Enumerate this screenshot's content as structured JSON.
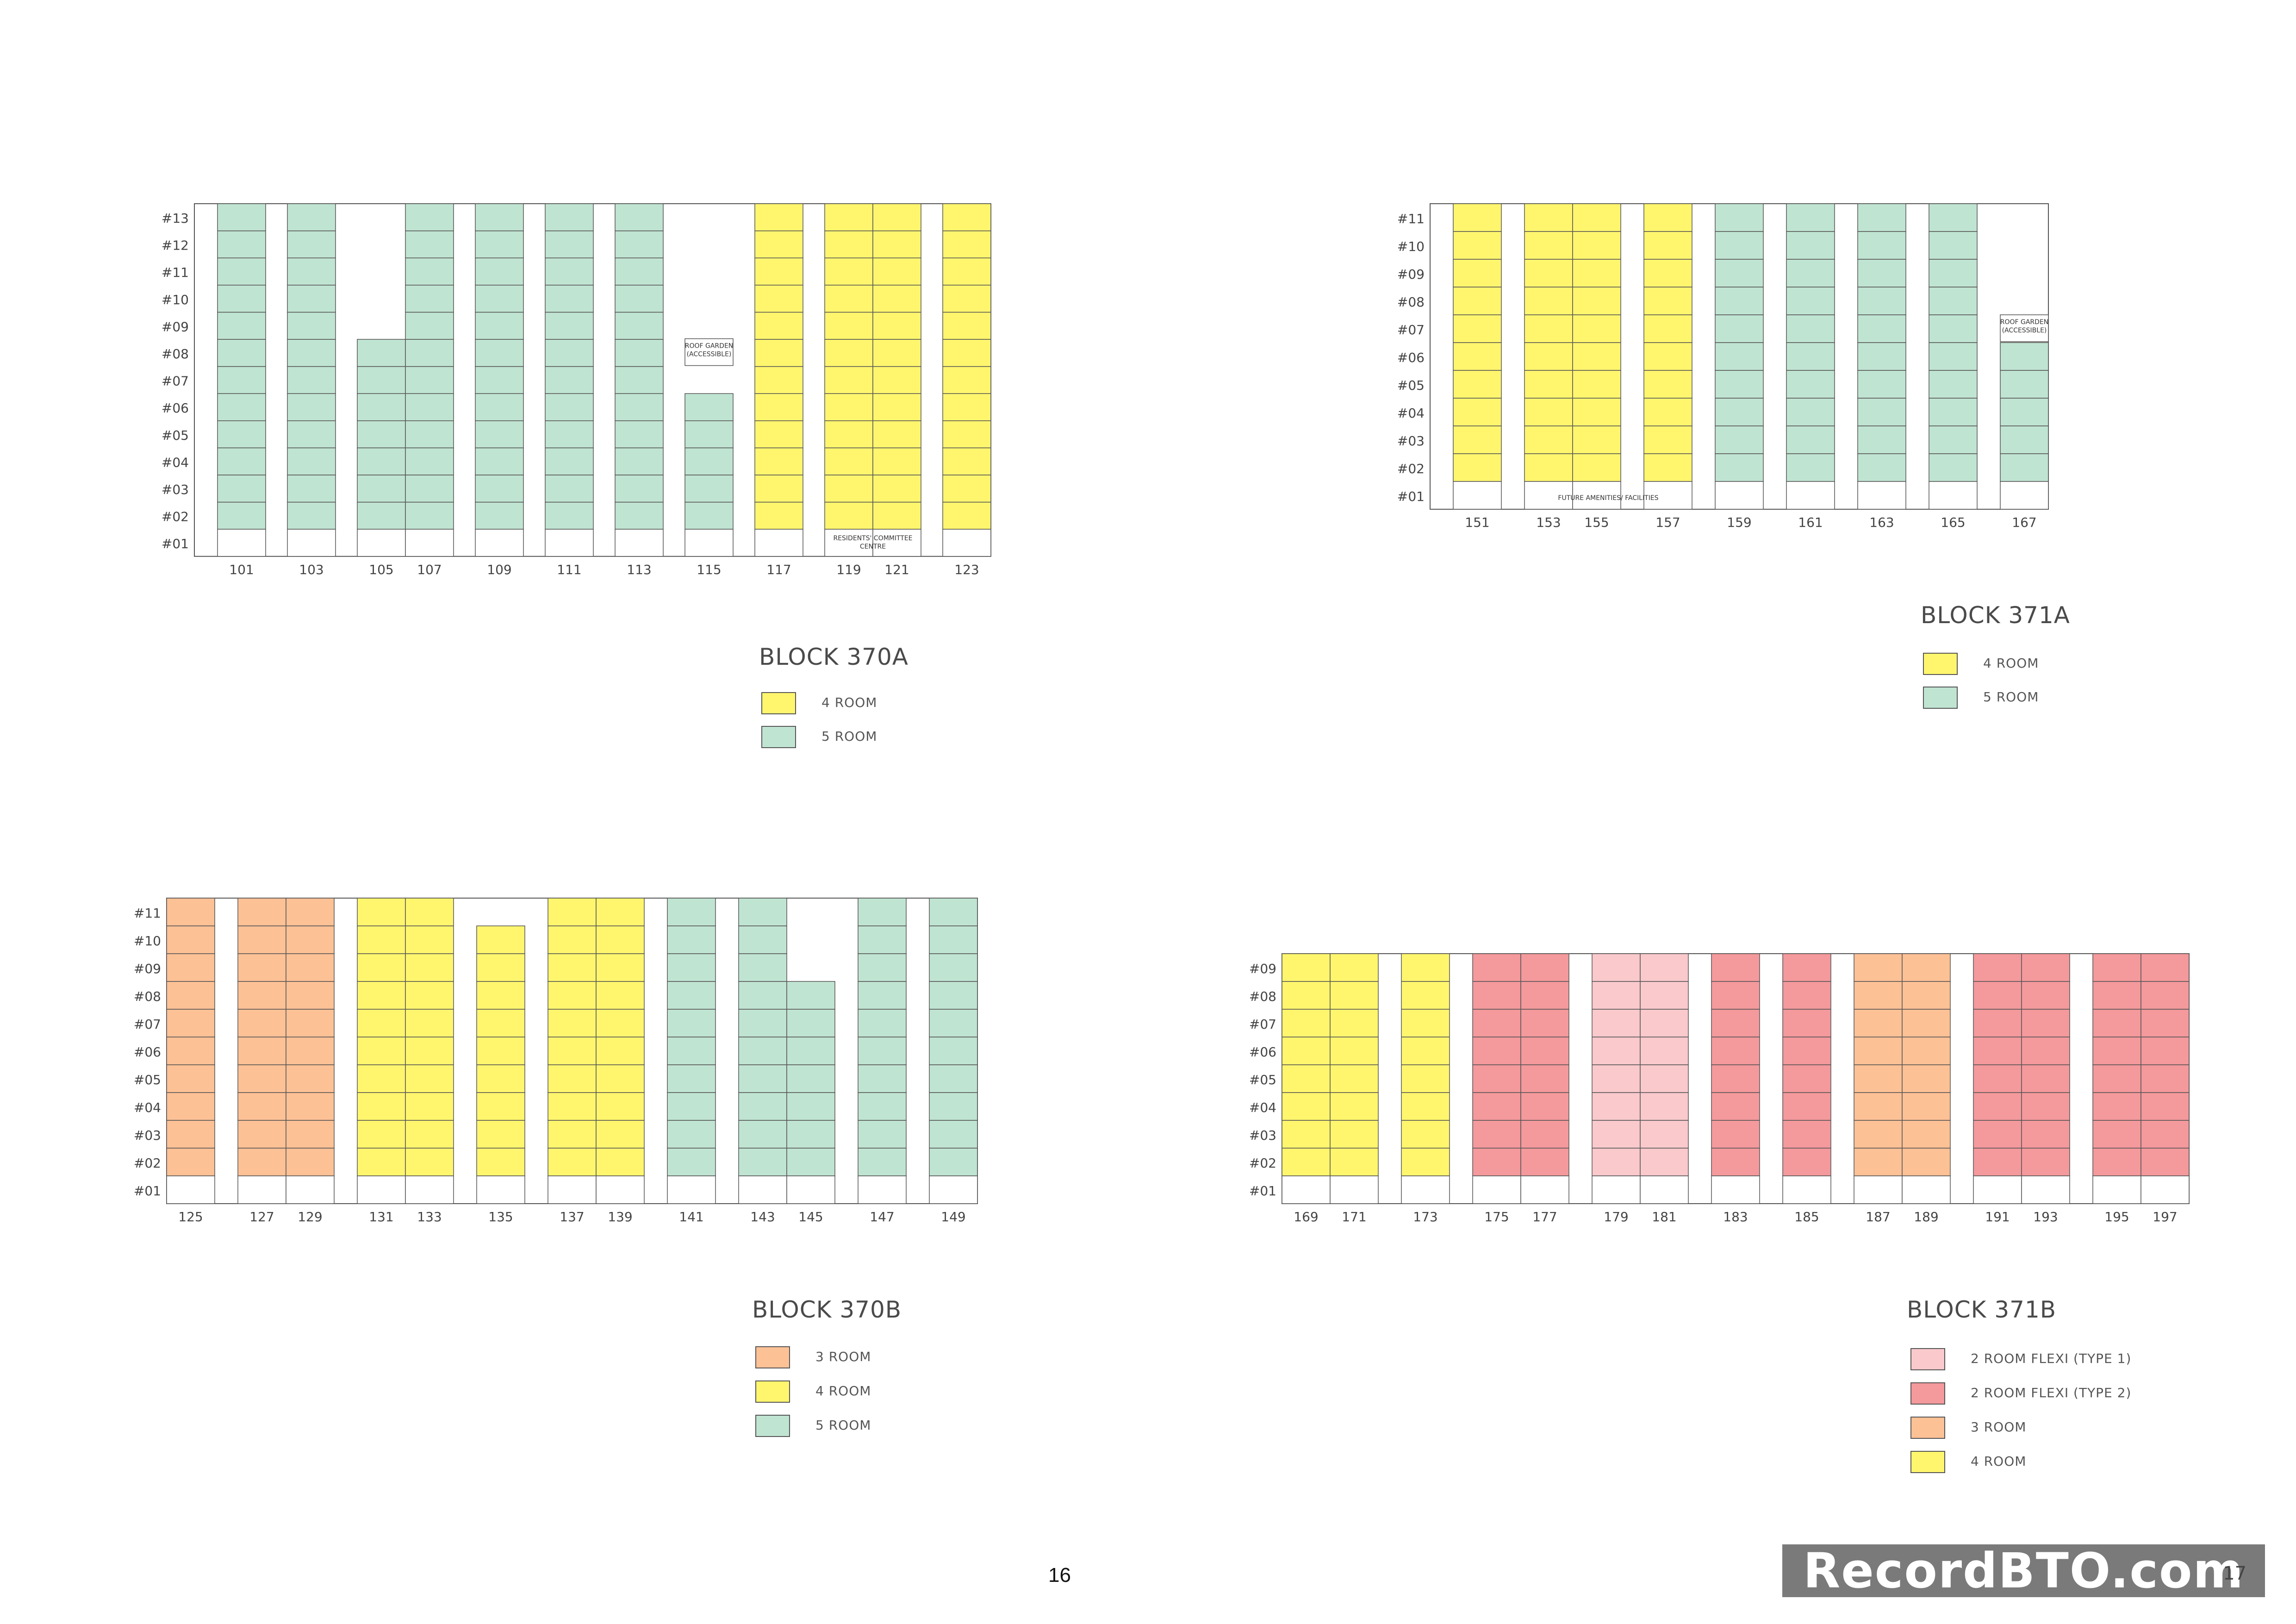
{
  "colors": {
    "two_room_flexi_type1": "#f9c9cc",
    "two_room_flexi_type2": "#f4999c",
    "three_room": "#fdc196",
    "four_room": "#fff66e",
    "five_room": "#c0e4d2",
    "empty": "#ffffff",
    "line": "#555555"
  },
  "page": {
    "page_number": "16",
    "watermark": "RecordBTO.com",
    "watermark_trailing_digit": "17"
  },
  "blocks": [
    {
      "id": "370A",
      "title": "BLOCK  370A",
      "floor_labels": [
        "#13",
        "#12",
        "#11",
        "#10",
        "#09",
        "#08",
        "#07",
        "#06",
        "#05",
        "#04",
        "#03",
        "#02",
        "#01"
      ],
      "stacks": [
        {
          "label": "101",
          "type": "five_room",
          "top_floor": 13
        },
        {
          "label": "103",
          "type": "five_room",
          "top_floor": 13
        },
        {
          "label": "105",
          "type": "five_room",
          "top_floor": 8
        },
        {
          "label": "107",
          "type": "five_room",
          "top_floor": 13
        },
        {
          "label": "109",
          "type": "five_room",
          "top_floor": 13
        },
        {
          "label": "111",
          "type": "five_room",
          "top_floor": 13
        },
        {
          "label": "113",
          "type": "five_room",
          "top_floor": 13
        },
        {
          "label": "115",
          "type": "five_room",
          "top_floor": 6
        },
        {
          "label": "117",
          "type": "four_room",
          "top_floor": 13
        },
        {
          "label": "119",
          "type": "four_room",
          "top_floor": 13
        },
        {
          "label": "121",
          "type": "four_room",
          "top_floor": 13
        },
        {
          "label": "123",
          "type": "four_room",
          "top_floor": 13
        }
      ],
      "notes": [
        "ROOF GARDEN",
        "(ACCESSIBLE)",
        "RESIDENTS' COMMITTEE",
        "CENTRE"
      ],
      "legend": [
        {
          "type": "four_room",
          "label": "4  ROOM"
        },
        {
          "type": "five_room",
          "label": "5  ROOM"
        }
      ]
    },
    {
      "id": "371A",
      "title": "BLOCK  371A",
      "floor_labels": [
        "#11",
        "#10",
        "#09",
        "#08",
        "#07",
        "#06",
        "#05",
        "#04",
        "#03",
        "#02",
        "#01"
      ],
      "stacks": [
        {
          "label": "151",
          "type": "four_room",
          "top_floor": 11
        },
        {
          "label": "153",
          "type": "four_room",
          "top_floor": 11
        },
        {
          "label": "155",
          "type": "four_room",
          "top_floor": 11
        },
        {
          "label": "157",
          "type": "four_room",
          "top_floor": 11
        },
        {
          "label": "159",
          "type": "five_room",
          "top_floor": 11
        },
        {
          "label": "161",
          "type": "five_room",
          "top_floor": 11
        },
        {
          "label": "163",
          "type": "five_room",
          "top_floor": 11
        },
        {
          "label": "165",
          "type": "five_room",
          "top_floor": 11
        },
        {
          "label": "167",
          "type": "five_room",
          "top_floor": 6
        }
      ],
      "notes": [
        "FUTURE AMENITIES/ FACILITIES",
        "ROOF GARDEN",
        "(ACCESSIBLE)"
      ],
      "legend": [
        {
          "type": "four_room",
          "label": "4  ROOM"
        },
        {
          "type": "five_room",
          "label": "5  ROOM"
        }
      ]
    },
    {
      "id": "370B",
      "title": "BLOCK  370B",
      "floor_labels": [
        "#11",
        "#10",
        "#09",
        "#08",
        "#07",
        "#06",
        "#05",
        "#04",
        "#03",
        "#02",
        "#01"
      ],
      "stacks": [
        {
          "label": "125",
          "type": "three_room",
          "top_floor": 11
        },
        {
          "label": "127",
          "type": "three_room",
          "top_floor": 11
        },
        {
          "label": "129",
          "type": "three_room",
          "top_floor": 11
        },
        {
          "label": "131",
          "type": "four_room",
          "top_floor": 11
        },
        {
          "label": "133",
          "type": "four_room",
          "top_floor": 11
        },
        {
          "label": "135",
          "type": "four_room",
          "top_floor": 10
        },
        {
          "label": "137",
          "type": "four_room",
          "top_floor": 11
        },
        {
          "label": "139",
          "type": "four_room",
          "top_floor": 11
        },
        {
          "label": "141",
          "type": "five_room",
          "top_floor": 11
        },
        {
          "label": "143",
          "type": "five_room",
          "top_floor": 11
        },
        {
          "label": "145",
          "type": "five_room",
          "top_floor": 8
        },
        {
          "label": "147",
          "type": "five_room",
          "top_floor": 11
        },
        {
          "label": "149",
          "type": "five_room",
          "top_floor": 11
        }
      ],
      "notes": [],
      "legend": [
        {
          "type": "three_room",
          "label": "3  ROOM"
        },
        {
          "type": "four_room",
          "label": "4  ROOM"
        },
        {
          "type": "five_room",
          "label": "5  ROOM"
        }
      ]
    },
    {
      "id": "371B",
      "title": "BLOCK  371B",
      "floor_labels": [
        "#09",
        "#08",
        "#07",
        "#06",
        "#05",
        "#04",
        "#03",
        "#02",
        "#01"
      ],
      "stacks": [
        {
          "label": "169",
          "type": "four_room",
          "top_floor": 9
        },
        {
          "label": "171",
          "type": "four_room",
          "top_floor": 9
        },
        {
          "label": "173",
          "type": "four_room",
          "top_floor": 9
        },
        {
          "label": "175",
          "type": "two_room_flexi_type2",
          "top_floor": 9
        },
        {
          "label": "177",
          "type": "two_room_flexi_type2",
          "top_floor": 9
        },
        {
          "label": "179",
          "type": "two_room_flexi_type1",
          "top_floor": 9
        },
        {
          "label": "181",
          "type": "two_room_flexi_type1",
          "top_floor": 9
        },
        {
          "label": "183",
          "type": "two_room_flexi_type2",
          "top_floor": 9
        },
        {
          "label": "185",
          "type": "two_room_flexi_type2",
          "top_floor": 9
        },
        {
          "label": "187",
          "type": "three_room",
          "top_floor": 9
        },
        {
          "label": "189",
          "type": "three_room",
          "top_floor": 9
        },
        {
          "label": "191",
          "type": "two_room_flexi_type2",
          "top_floor": 9
        },
        {
          "label": "193",
          "type": "two_room_flexi_type2",
          "top_floor": 9
        },
        {
          "label": "195",
          "type": "two_room_flexi_type2",
          "top_floor": 9
        },
        {
          "label": "197",
          "type": "two_room_flexi_type2",
          "top_floor": 9
        }
      ],
      "notes": [],
      "legend": [
        {
          "type": "two_room_flexi_type1",
          "label": "2  ROOM  FLEXI  (TYPE  1)"
        },
        {
          "type": "two_room_flexi_type2",
          "label": "2  ROOM  FLEXI  (TYPE  2)"
        },
        {
          "type": "three_room",
          "label": "3  ROOM"
        },
        {
          "type": "four_room",
          "label": "4  ROOM"
        }
      ]
    }
  ]
}
